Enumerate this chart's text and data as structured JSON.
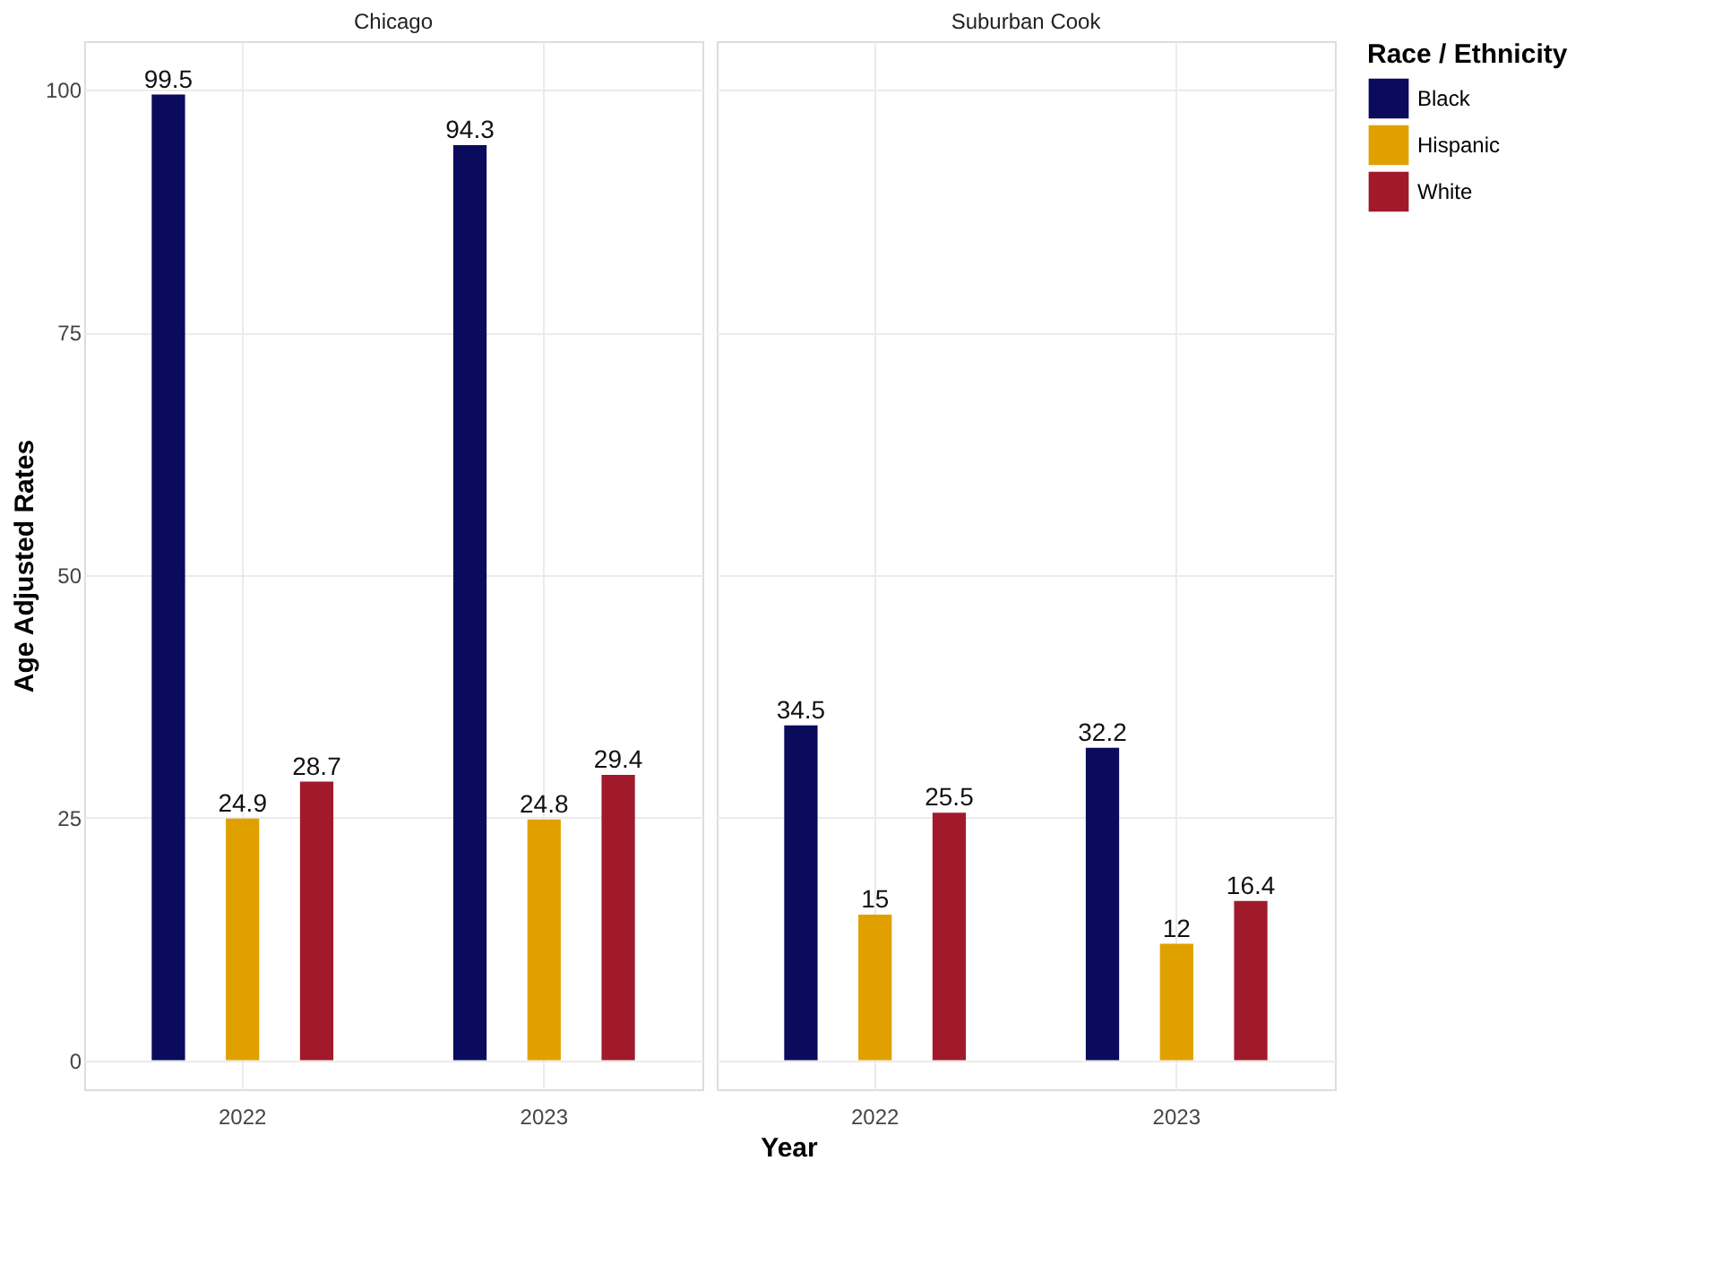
{
  "chart_data": [
    {
      "type": "bar",
      "title": "Chicago",
      "xlabel": "Year",
      "ylabel": "Age Adjusted Rates",
      "categories": [
        "2022",
        "2023"
      ],
      "series": [
        {
          "color": "#0b0b5e",
          "values": [
            99.5,
            94.3
          ]
        },
        {
          "color": "#e0a100",
          "values": [
            24.9,
            24.8
          ]
        },
        {
          "color": "#a01a2b",
          "values": [
            28.7,
            29.4
          ]
        }
      ],
      "ylim": [
        -3,
        105
      ],
      "yticks": [
        0,
        25,
        50,
        75,
        100
      ],
      "grid": true,
      "data_labels": true
    },
    {
      "type": "bar",
      "title": "Suburban Cook",
      "legend_title": "Race / Ethnicity",
      "categories": [
        "2022",
        "2023"
      ],
      "series": [
        {
          "name": "Black",
          "color": "#0b0b5e",
          "values": [
            34.5,
            32.2
          ]
        },
        {
          "name": "Hispanic",
          "color": "#e0a100",
          "values": [
            15,
            12
          ]
        },
        {
          "name": "White",
          "color": "#a01a2b",
          "values": [
            25.5,
            16.4
          ]
        }
      ],
      "ylim": [
        -3,
        105
      ],
      "yticks": [
        0,
        25,
        50,
        75,
        100
      ],
      "grid": true,
      "data_labels": true,
      "legend": "right",
      "tick_labels": "x"
    }
  ]
}
